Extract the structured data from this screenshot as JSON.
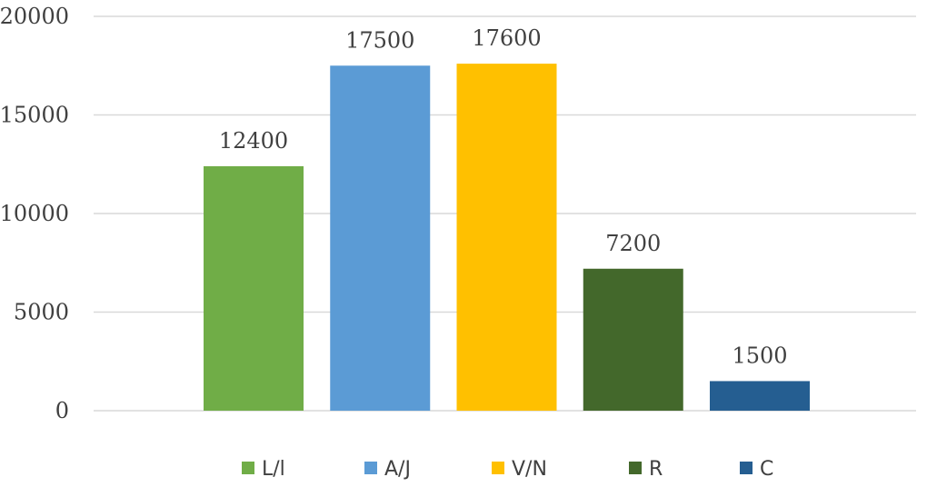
{
  "chart_data": {
    "type": "bar",
    "categories": [
      "L/l",
      "A/J",
      "V/N",
      "R",
      "C"
    ],
    "values": [
      12400,
      17500,
      17600,
      7200,
      1500
    ],
    "colors": [
      "#70ad47",
      "#5b9bd5",
      "#ffc000",
      "#43682b",
      "#255e91"
    ],
    "ylim": [
      0,
      20000
    ],
    "yticks": [
      0,
      5000,
      10000,
      15000,
      20000
    ],
    "grid": true,
    "legend_position": "bottom",
    "data_labels": true
  }
}
